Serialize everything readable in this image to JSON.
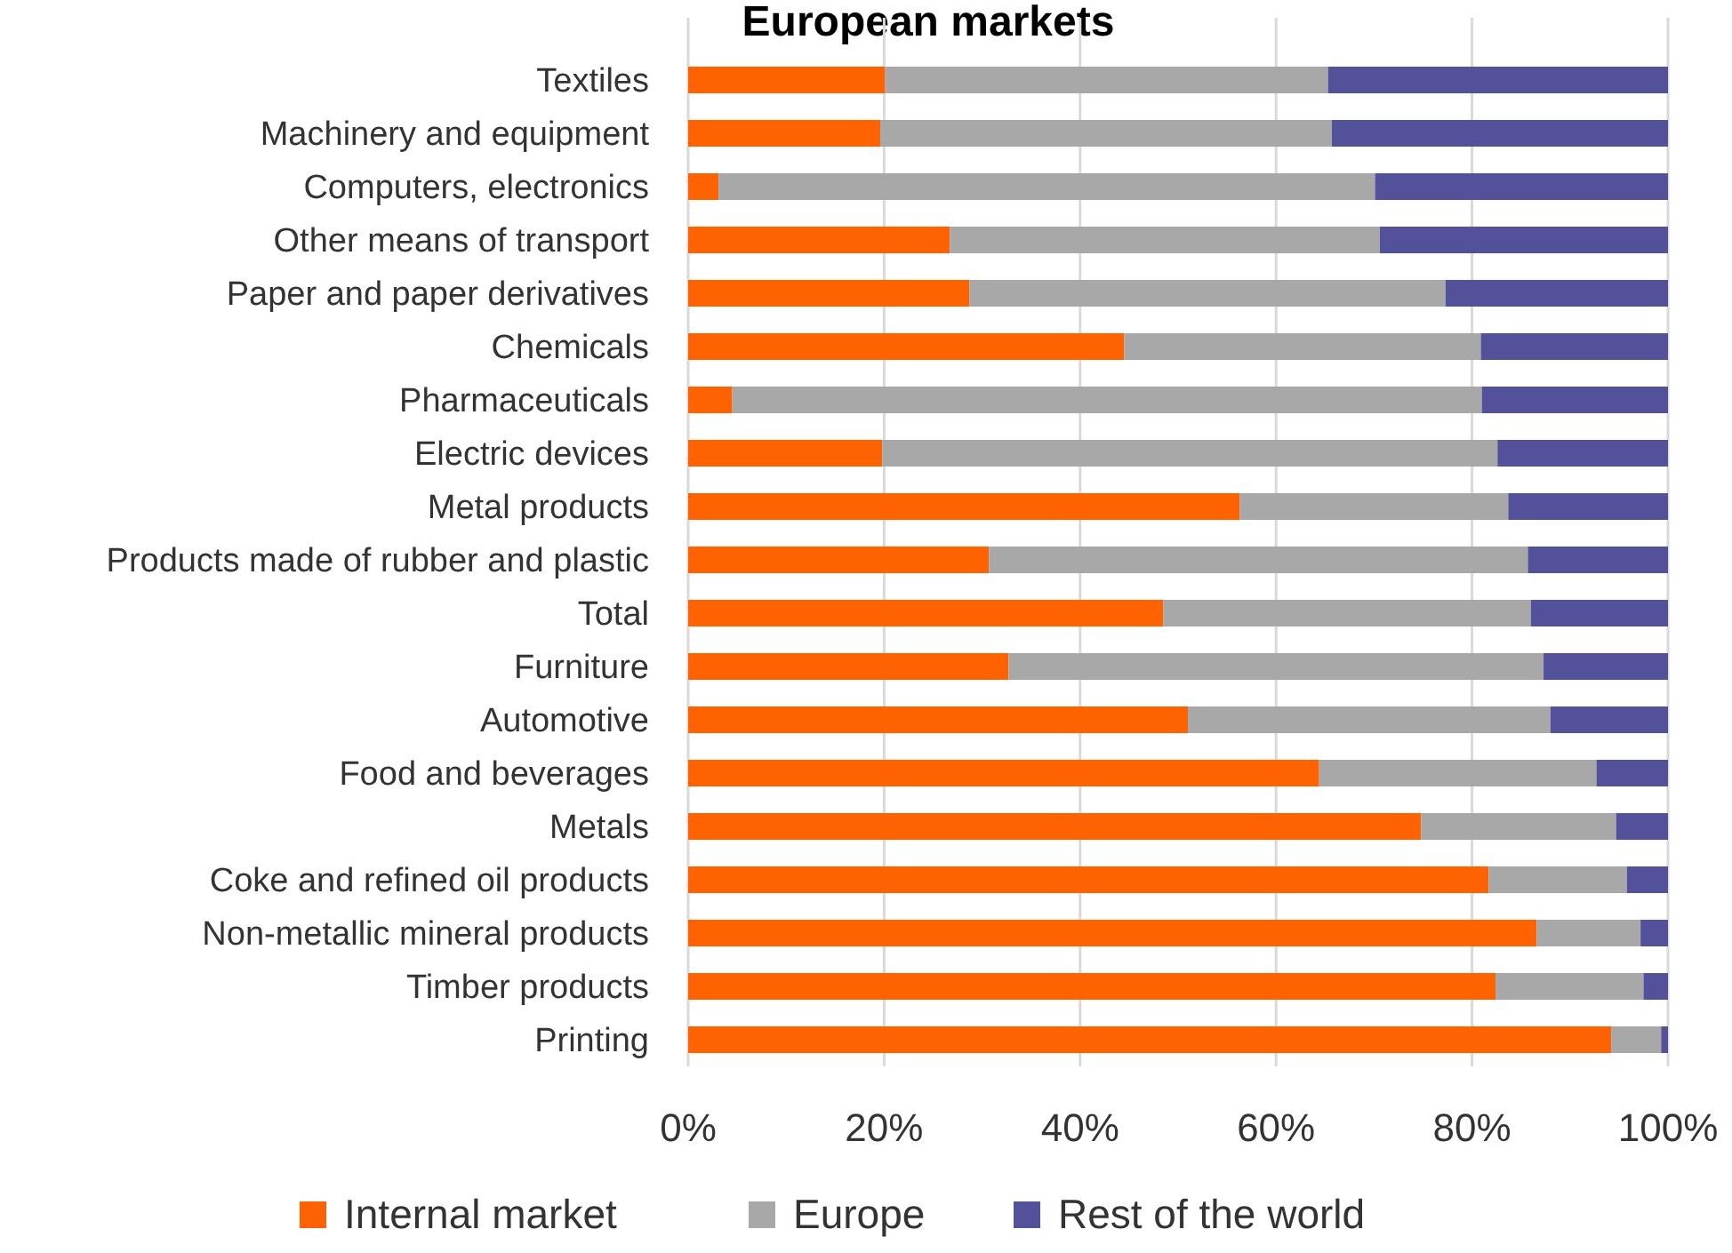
{
  "chart_data": {
    "type": "bar",
    "orientation": "horizontal",
    "stacked": true,
    "title": "European markets",
    "categories": [
      "Textiles",
      "Machinery and equipment",
      "Computers, electronics",
      "Other means of transport",
      "Paper and paper derivatives",
      "Chemicals",
      "Pharmaceuticals",
      "Electric devices",
      "Metal products",
      "Products made of rubber and plastic",
      "Total",
      "Furniture",
      "Automotive",
      "Food and beverages",
      "Metals",
      "Coke and refined oil products",
      "Non-metallic mineral products",
      "Timber products",
      "Printing"
    ],
    "series": [
      {
        "name": "Internal market",
        "color": "#ff6200",
        "values": [
          20.1,
          19.6,
          3.1,
          26.7,
          28.7,
          44.5,
          4.5,
          19.8,
          56.3,
          30.7,
          48.5,
          32.7,
          51,
          64.4,
          74.8,
          81.7,
          86.6,
          82.4,
          94.2
        ]
      },
      {
        "name": "Europe",
        "color": "#a8a8a8",
        "values": [
          45.2,
          46.1,
          67,
          43.9,
          48.6,
          36.4,
          76.5,
          62.8,
          27.4,
          55,
          37.5,
          54.6,
          37,
          28.3,
          19.9,
          14.1,
          10.6,
          15.1,
          5.1
        ]
      },
      {
        "name": "Rest of the world",
        "color": "#525199",
        "values": [
          34.7,
          34.3,
          29.9,
          29.4,
          22.7,
          19.1,
          19,
          17.4,
          16.3,
          14.3,
          14,
          12.7,
          12,
          7.3,
          5.3,
          4.2,
          2.8,
          2.5,
          0.7
        ]
      }
    ],
    "xlim": [
      0,
      100
    ],
    "xticks": [
      {
        "value": 0,
        "label": "0%"
      },
      {
        "value": 20,
        "label": "20%"
      },
      {
        "value": 40,
        "label": "40%"
      },
      {
        "value": 60,
        "label": "60%"
      },
      {
        "value": 80,
        "label": "80%"
      },
      {
        "value": 100,
        "label": "100%"
      }
    ],
    "grid": "x",
    "legend": "bottom"
  }
}
